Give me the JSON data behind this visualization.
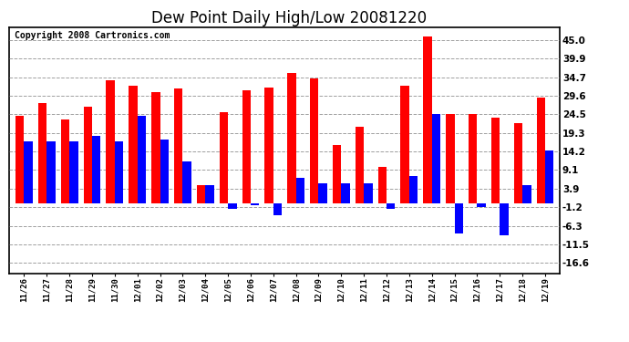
{
  "title": "Dew Point Daily High/Low 20081220",
  "copyright": "Copyright 2008 Cartronics.com",
  "dates": [
    "11/26",
    "11/27",
    "11/28",
    "11/29",
    "11/30",
    "12/01",
    "12/02",
    "12/03",
    "12/04",
    "12/05",
    "12/06",
    "12/07",
    "12/08",
    "12/09",
    "12/10",
    "12/11",
    "12/12",
    "12/13",
    "12/14",
    "12/15",
    "12/16",
    "12/17",
    "12/18",
    "12/19"
  ],
  "highs": [
    24.0,
    27.5,
    23.0,
    26.5,
    34.0,
    32.5,
    30.5,
    31.5,
    5.0,
    25.0,
    31.0,
    32.0,
    36.0,
    34.5,
    16.0,
    21.0,
    10.0,
    32.5,
    46.0,
    24.5,
    24.5,
    23.5,
    22.0,
    29.0
  ],
  "lows": [
    17.0,
    17.0,
    17.0,
    18.5,
    17.0,
    24.0,
    17.5,
    11.5,
    5.0,
    -1.5,
    -0.5,
    -3.5,
    7.0,
    5.5,
    5.5,
    5.5,
    -1.5,
    7.5,
    24.5,
    -8.5,
    -1.0,
    -9.0,
    5.0,
    14.5
  ],
  "high_color": "#ff0000",
  "low_color": "#0000ff",
  "bg_color": "#ffffff",
  "grid_color": "#888888",
  "yticks": [
    45.0,
    39.9,
    34.7,
    29.6,
    24.5,
    19.3,
    14.2,
    9.1,
    3.9,
    -1.2,
    -6.3,
    -11.5,
    -16.6
  ],
  "ylim": [
    -19.5,
    48.5
  ],
  "bar_width": 0.38,
  "title_fontsize": 12,
  "copyright_fontsize": 7,
  "tick_fontsize": 7.5,
  "xtick_fontsize": 6.5
}
